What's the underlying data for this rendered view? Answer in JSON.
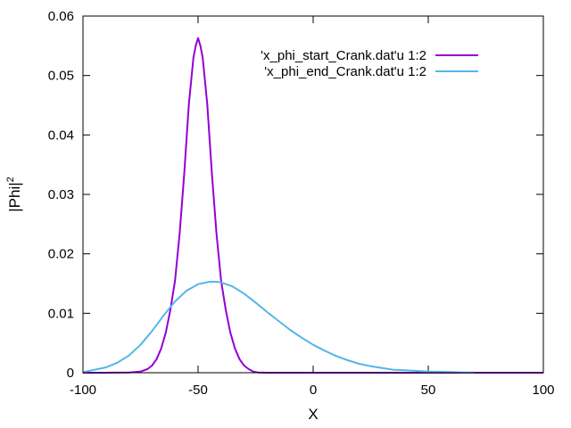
{
  "chart_data": {
    "type": "line",
    "title": "",
    "xlabel": "X",
    "ylabel": "|Phi|",
    "ylabel_superscript": "2",
    "xlim": [
      -100,
      100
    ],
    "ylim": [
      0,
      0.06
    ],
    "xticks": [
      -100,
      -50,
      0,
      50,
      100
    ],
    "xtick_labels": [
      "-100",
      "-50",
      "0",
      "50",
      "100"
    ],
    "yticks": [
      0,
      0.01,
      0.02,
      0.03,
      0.04,
      0.05,
      0.06
    ],
    "ytick_labels": [
      "0",
      "0.01",
      "0.02",
      "0.03",
      "0.04",
      "0.05",
      "0.06"
    ],
    "grid": false,
    "legend_position": "top-right",
    "series": [
      {
        "name": "'x_phi_start_Crank.dat'u 1:2",
        "color": "#9400d3",
        "x": [
          -100,
          -90,
          -80,
          -75,
          -72,
          -70,
          -68,
          -66,
          -64,
          -62,
          -60,
          -58,
          -56,
          -54,
          -52,
          -51,
          -50,
          -49,
          -48,
          -46,
          -44,
          -42,
          -40,
          -38,
          -36,
          -34,
          -32,
          -30,
          -28,
          -26,
          -24,
          -20,
          -10,
          0,
          50,
          100
        ],
        "y": [
          0,
          0,
          3e-05,
          0.0002,
          0.0006,
          0.0012,
          0.0023,
          0.0041,
          0.0068,
          0.0106,
          0.0155,
          0.0235,
          0.0335,
          0.0452,
          0.053,
          0.055,
          0.0563,
          0.055,
          0.053,
          0.0452,
          0.0335,
          0.0235,
          0.0155,
          0.0106,
          0.0068,
          0.0041,
          0.0023,
          0.0012,
          0.0006,
          0.0002,
          5e-05,
          0,
          0,
          0,
          0,
          0
        ]
      },
      {
        "name": "'x_phi_end_Crank.dat'u 1:2",
        "color": "#56b4e9",
        "x": [
          -100,
          -95,
          -90,
          -85,
          -80,
          -75,
          -70,
          -65,
          -60,
          -55,
          -50,
          -45,
          -42,
          -40,
          -35,
          -30,
          -25,
          -20,
          -15,
          -10,
          -5,
          0,
          5,
          10,
          15,
          20,
          25,
          30,
          35,
          40,
          45,
          50,
          55,
          60,
          65,
          70
        ],
        "y": [
          0.0001,
          0.0005,
          0.0009,
          0.0017,
          0.0029,
          0.0047,
          0.007,
          0.0096,
          0.012,
          0.0138,
          0.0149,
          0.0153,
          0.0153,
          0.0152,
          0.0145,
          0.0133,
          0.0118,
          0.0102,
          0.0087,
          0.0072,
          0.0059,
          0.0047,
          0.0037,
          0.0028,
          0.0021,
          0.0015,
          0.0011,
          0.0008,
          0.0005,
          0.0004,
          0.0003,
          0.0002,
          0.00015,
          0.0001,
          5e-05,
          3e-05
        ]
      }
    ]
  }
}
